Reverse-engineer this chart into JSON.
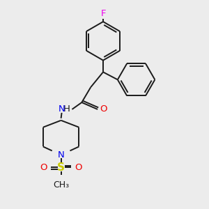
{
  "background_color": "#ececec",
  "bond_color": "#1a1a1a",
  "atom_colors": {
    "F": "#ee00ee",
    "N": "#0000ee",
    "O": "#ee0000",
    "S": "#cccc00",
    "C": "#1a1a1a",
    "H": "#1a1a1a"
  },
  "figsize": [
    3.0,
    3.0
  ],
  "dpi": 100,
  "lw": 1.4,
  "ring_r": 28,
  "font_size": 9.5
}
